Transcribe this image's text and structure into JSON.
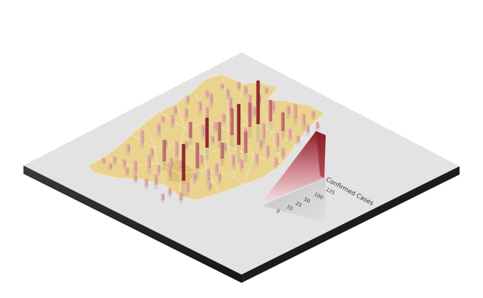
{
  "map": {
    "type": "3d-bar-map",
    "colors": {
      "plate_top": "#e3e3e3",
      "plate_side": "#2b2b2b",
      "region_fill": "#e9d38f",
      "region_stroke": "#f3e7bf",
      "region_shadow": "#d9bb63",
      "bar_low": "#e7a4a9",
      "bar_mid": "#c56a73",
      "bar_high": "#8d1b27"
    },
    "legend": {
      "title": "Confirmed Cases",
      "ticks": [
        "0",
        "15",
        "25",
        "50",
        "100",
        "125"
      ]
    }
  }
}
